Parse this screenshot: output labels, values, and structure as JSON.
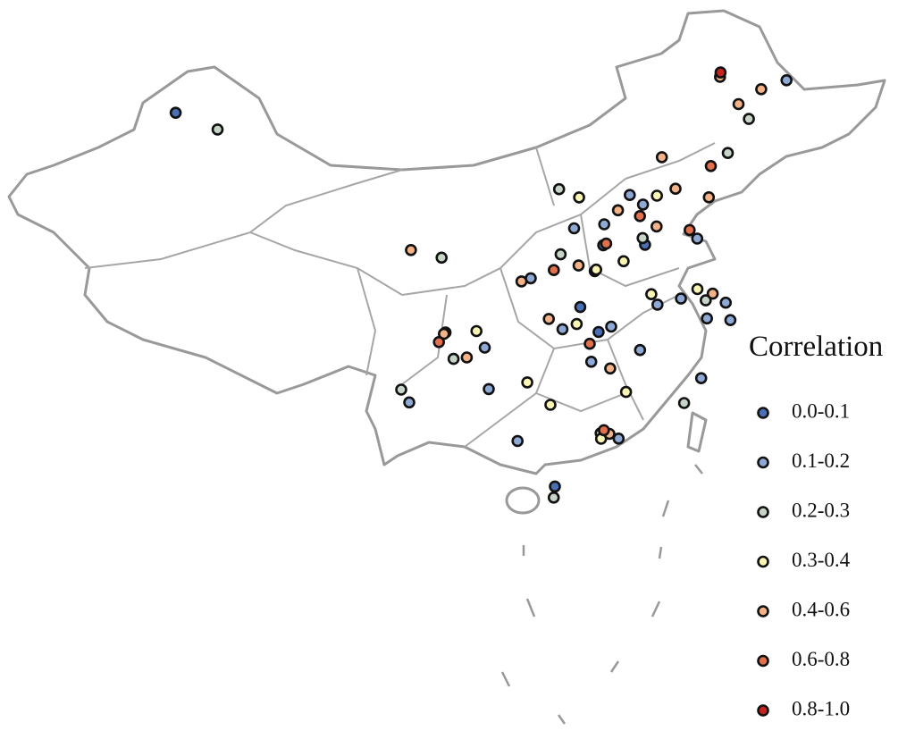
{
  "legend": {
    "title": "Correlation",
    "items": [
      {
        "label": "0.0-0.1",
        "color": "#4a6fb5",
        "stations": [
          [
            84.9,
            44.4
          ],
          [
            114.3,
            36.5
          ],
          [
            113.5,
            30.3
          ],
          [
            112.5,
            32.2
          ],
          [
            110.3,
            19.4
          ],
          [
            117.0,
            36.2
          ]
        ]
      },
      {
        "label": "0.1-0.2",
        "color": "#8fa9d6",
        "stations": [
          [
            116.4,
            39.9
          ],
          [
            117.2,
            39.1
          ],
          [
            114.5,
            38.0
          ],
          [
            112.5,
            37.9
          ],
          [
            113.6,
            34.7
          ],
          [
            118.8,
            32.0
          ],
          [
            120.2,
            30.3
          ],
          [
            121.5,
            31.2
          ],
          [
            119.3,
            26.1
          ],
          [
            113.3,
            23.1
          ],
          [
            114.1,
            22.5
          ],
          [
            108.3,
            22.8
          ],
          [
            106.7,
            26.6
          ],
          [
            104.1,
            30.7
          ],
          [
            106.5,
            29.6
          ],
          [
            117.3,
            31.8
          ],
          [
            115.9,
            28.7
          ],
          [
            128.5,
            46.0
          ],
          [
            112.9,
            28.2
          ],
          [
            111.3,
            30.7
          ],
          [
            120.4,
            36.1
          ],
          [
            114.3,
            30.6
          ],
          [
            121.6,
            29.9
          ],
          [
            102.0,
            25.6
          ],
          [
            109.5,
            34.5
          ]
        ]
      },
      {
        "label": "0.2-0.3",
        "color": "#c6d5c8",
        "stations": [
          [
            88.0,
            43.8
          ],
          [
            125.3,
            43.9
          ],
          [
            123.4,
            41.8
          ],
          [
            111.7,
            40.8
          ],
          [
            103.8,
            36.1
          ],
          [
            116.9,
            36.7
          ],
          [
            120.3,
            31.6
          ],
          [
            118.1,
            24.5
          ],
          [
            113.1,
            23.0
          ],
          [
            110.2,
            18.6
          ],
          [
            104.6,
            28.8
          ],
          [
            101.5,
            26.5
          ],
          [
            111.5,
            36.1
          ]
        ]
      },
      {
        "label": "0.3-0.4",
        "color": "#fbf6b4",
        "stations": [
          [
            113.0,
            40.1
          ],
          [
            118.2,
            39.6
          ],
          [
            113.7,
            34.8
          ],
          [
            117.0,
            32.6
          ],
          [
            119.9,
            32.5
          ],
          [
            112.2,
            31.0
          ],
          [
            113.1,
            22.6
          ],
          [
            114.8,
            25.8
          ],
          [
            106.0,
            30.8
          ],
          [
            110.3,
            25.3
          ],
          [
            115.5,
            35.2
          ],
          [
            109.0,
            27.0
          ]
        ]
      },
      {
        "label": "0.4-0.6",
        "color": "#f3b287",
        "stations": [
          [
            101.8,
            36.6
          ],
          [
            126.6,
            45.8
          ],
          [
            123.9,
            47.3
          ],
          [
            124.8,
            45.1
          ],
          [
            118.9,
            42.3
          ],
          [
            121.6,
            38.9
          ],
          [
            119.5,
            39.9
          ],
          [
            115.5,
            38.9
          ],
          [
            117.9,
            37.4
          ],
          [
            112.6,
            35.2
          ],
          [
            108.9,
            34.3
          ],
          [
            104.0,
            30.6
          ],
          [
            105.4,
            28.9
          ],
          [
            114.0,
            27.6
          ],
          [
            113.6,
            22.9
          ],
          [
            120.8,
            32.0
          ],
          [
            110.5,
            31.5
          ]
        ]
      },
      {
        "label": "0.6-0.8",
        "color": "#e3704d",
        "stations": [
          [
            122.1,
            41.1
          ],
          [
            116.9,
            38.3
          ],
          [
            114.5,
            36.6
          ],
          [
            111.0,
            35.0
          ],
          [
            112.9,
            29.5
          ],
          [
            113.3,
            23.2
          ],
          [
            103.7,
            30.0
          ],
          [
            120.0,
            36.8
          ]
        ]
      },
      {
        "label": "0.8-1.0",
        "color": "#c8231f",
        "stations": [
          [
            124.0,
            47.6
          ]
        ]
      }
    ]
  }
}
